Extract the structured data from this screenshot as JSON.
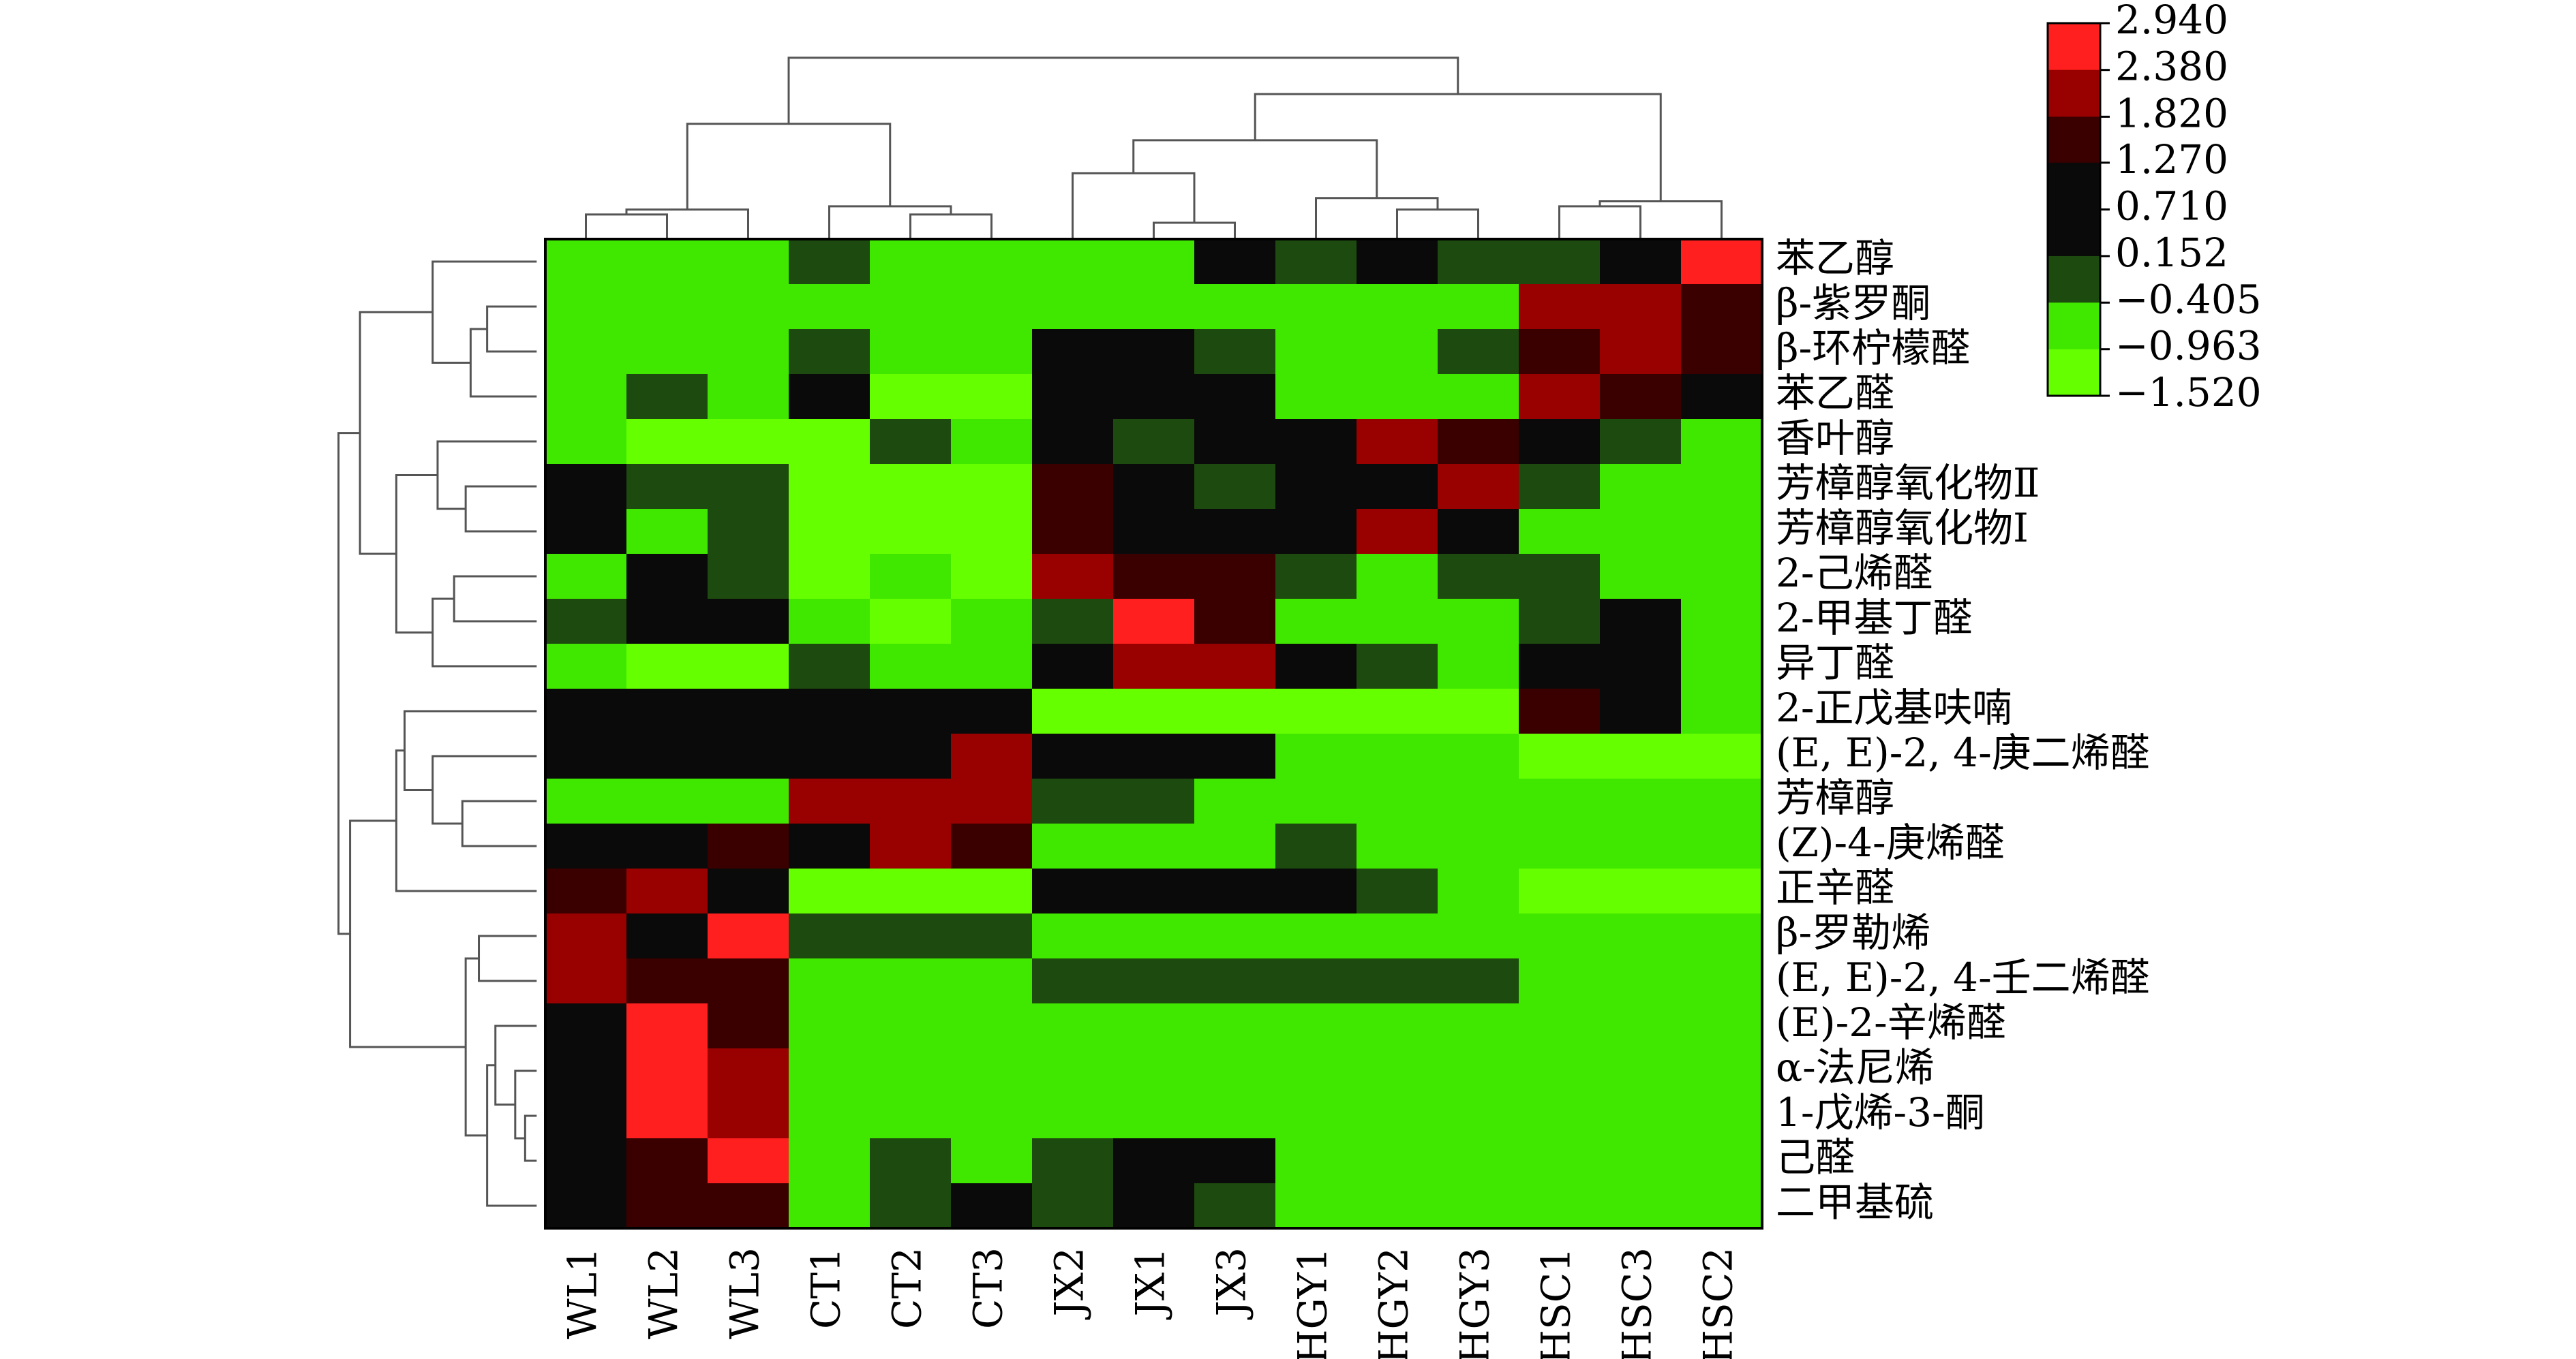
{
  "chart_data": {
    "type": "heatmap",
    "x_categories": [
      "WL1",
      "WL2",
      "WL3",
      "CT1",
      "CT2",
      "CT3",
      "JX2",
      "JX1",
      "JX3",
      "HGY1",
      "HGY2",
      "HGY3",
      "HSC1",
      "HSC3",
      "HSC2"
    ],
    "y_categories": [
      "苯乙醇",
      "β-紫罗酮",
      "β-环柠檬醛",
      "苯乙醛",
      "香叶醇",
      "芳樟醇氧化物Ⅱ",
      "芳樟醇氧化物Ⅰ",
      "2-己烯醛",
      "2-甲基丁醛",
      "异丁醛",
      "2-正戊基呋喃",
      "(E, E)-2, 4-庚二烯醛",
      "芳樟醇",
      "(Z)-4-庚烯醛",
      "正辛醛",
      "β-罗勒烯",
      "(E, E)-2, 4-壬二烯醛",
      "(E)-2-辛烯醛",
      "α-法尼烯",
      "1-戊烯-3-酮",
      "己醛",
      "二甲基硫"
    ],
    "values": [
      [
        -0.68,
        -0.68,
        -0.68,
        -0.13,
        -0.68,
        -0.68,
        -0.68,
        -0.68,
        0.43,
        -0.13,
        0.43,
        -0.13,
        -0.13,
        0.43,
        2.66
      ],
      [
        -0.68,
        -0.68,
        -0.68,
        -0.68,
        -0.68,
        -0.68,
        -0.68,
        -0.68,
        -0.68,
        -0.68,
        -0.68,
        -0.68,
        2.1,
        2.1,
        1.55
      ],
      [
        -0.68,
        -0.68,
        -0.68,
        -0.13,
        -0.68,
        -0.68,
        0.43,
        0.43,
        -0.13,
        -0.68,
        -0.68,
        -0.13,
        1.55,
        2.1,
        1.55
      ],
      [
        -0.68,
        -0.13,
        -0.68,
        0.43,
        -1.24,
        -1.24,
        0.43,
        0.43,
        0.43,
        -0.68,
        -0.68,
        -0.68,
        2.1,
        1.55,
        0.43
      ],
      [
        -0.68,
        -1.24,
        -1.24,
        -1.24,
        -0.13,
        -0.68,
        0.43,
        -0.13,
        0.43,
        0.43,
        2.1,
        1.55,
        0.43,
        -0.13,
        -0.68
      ],
      [
        0.43,
        -0.13,
        -0.13,
        -1.24,
        -1.24,
        -1.24,
        1.55,
        0.43,
        -0.13,
        0.43,
        0.43,
        2.1,
        -0.13,
        -0.68,
        -0.68
      ],
      [
        0.43,
        -0.68,
        -0.13,
        -1.24,
        -1.24,
        -1.24,
        1.55,
        0.43,
        0.43,
        0.43,
        2.1,
        0.43,
        -0.68,
        -0.68,
        -0.68
      ],
      [
        -0.68,
        0.43,
        -0.13,
        -1.24,
        -0.68,
        -1.24,
        2.1,
        1.55,
        1.55,
        -0.13,
        -0.68,
        -0.13,
        -0.13,
        -0.68,
        -0.68
      ],
      [
        -0.13,
        0.43,
        0.43,
        -0.68,
        -1.24,
        -0.68,
        -0.13,
        2.66,
        1.55,
        -0.68,
        -0.68,
        -0.68,
        -0.13,
        0.43,
        -0.68
      ],
      [
        -0.68,
        -1.24,
        -1.24,
        -0.13,
        -0.68,
        -0.68,
        0.43,
        2.1,
        2.1,
        0.43,
        -0.13,
        -0.68,
        0.43,
        0.43,
        -0.68
      ],
      [
        0.43,
        0.43,
        0.43,
        0.43,
        0.43,
        0.43,
        -1.24,
        -1.24,
        -1.24,
        -1.24,
        -1.24,
        -1.24,
        1.55,
        0.43,
        -0.68
      ],
      [
        0.43,
        0.43,
        0.43,
        0.43,
        0.43,
        2.1,
        0.43,
        0.43,
        0.43,
        -0.68,
        -0.68,
        -0.68,
        -1.24,
        -1.24,
        -1.24
      ],
      [
        -0.68,
        -0.68,
        -0.68,
        2.1,
        2.1,
        2.1,
        -0.13,
        -0.13,
        -0.68,
        -0.68,
        -0.68,
        -0.68,
        -0.68,
        -0.68,
        -0.68
      ],
      [
        0.43,
        0.43,
        1.55,
        0.43,
        2.1,
        1.55,
        -0.68,
        -0.68,
        -0.68,
        -0.13,
        -0.68,
        -0.68,
        -0.68,
        -0.68,
        -0.68
      ],
      [
        1.55,
        2.1,
        0.43,
        -1.24,
        -1.24,
        -1.24,
        0.43,
        0.43,
        0.43,
        0.43,
        -0.13,
        -0.68,
        -1.24,
        -1.24,
        -1.24
      ],
      [
        2.1,
        0.43,
        2.66,
        -0.13,
        -0.13,
        -0.13,
        -0.68,
        -0.68,
        -0.68,
        -0.68,
        -0.68,
        -0.68,
        -0.68,
        -0.68,
        -0.68
      ],
      [
        2.1,
        1.55,
        1.55,
        -0.68,
        -0.68,
        -0.68,
        -0.13,
        -0.13,
        -0.13,
        -0.13,
        -0.13,
        -0.13,
        -0.68,
        -0.68,
        -0.68
      ],
      [
        0.43,
        2.66,
        1.55,
        -0.68,
        -0.68,
        -0.68,
        -0.68,
        -0.68,
        -0.68,
        -0.68,
        -0.68,
        -0.68,
        -0.68,
        -0.68,
        -0.68
      ],
      [
        0.43,
        2.66,
        2.1,
        -0.68,
        -0.68,
        -0.68,
        -0.68,
        -0.68,
        -0.68,
        -0.68,
        -0.68,
        -0.68,
        -0.68,
        -0.68,
        -0.68
      ],
      [
        0.43,
        2.66,
        2.1,
        -0.68,
        -0.68,
        -0.68,
        -0.68,
        -0.68,
        -0.68,
        -0.68,
        -0.68,
        -0.68,
        -0.68,
        -0.68,
        -0.68
      ],
      [
        0.43,
        1.55,
        2.66,
        -0.68,
        -0.13,
        -0.68,
        -0.13,
        0.43,
        0.43,
        -0.68,
        -0.68,
        -0.68,
        -0.68,
        -0.68,
        -0.68
      ],
      [
        0.43,
        1.55,
        1.55,
        -0.68,
        -0.13,
        0.43,
        -0.13,
        0.43,
        -0.13,
        -0.68,
        -0.68,
        -0.68,
        -0.68,
        -0.68,
        -0.68
      ]
    ],
    "colorbar_ticks": [
      {
        "value": 2.94,
        "label": "2.940"
      },
      {
        "value": 2.38,
        "label": "2.380"
      },
      {
        "value": 1.82,
        "label": "1.820"
      },
      {
        "value": 1.27,
        "label": "1.270"
      },
      {
        "value": 0.71,
        "label": "0.710"
      },
      {
        "value": 0.152,
        "label": "0.152"
      },
      {
        "value": -0.405,
        "label": "−0.405"
      },
      {
        "value": -0.963,
        "label": "−0.963"
      },
      {
        "value": -1.52,
        "label": "−1.520"
      }
    ],
    "colorbar_lim": [
      -1.52,
      2.94
    ],
    "colors": [
      "#ff1f1f",
      "#990000",
      "#3a0000",
      "#0a0a0a",
      "#0a0a0a",
      "#1d4a0e",
      "#40e800",
      "#66ff00"
    ]
  }
}
